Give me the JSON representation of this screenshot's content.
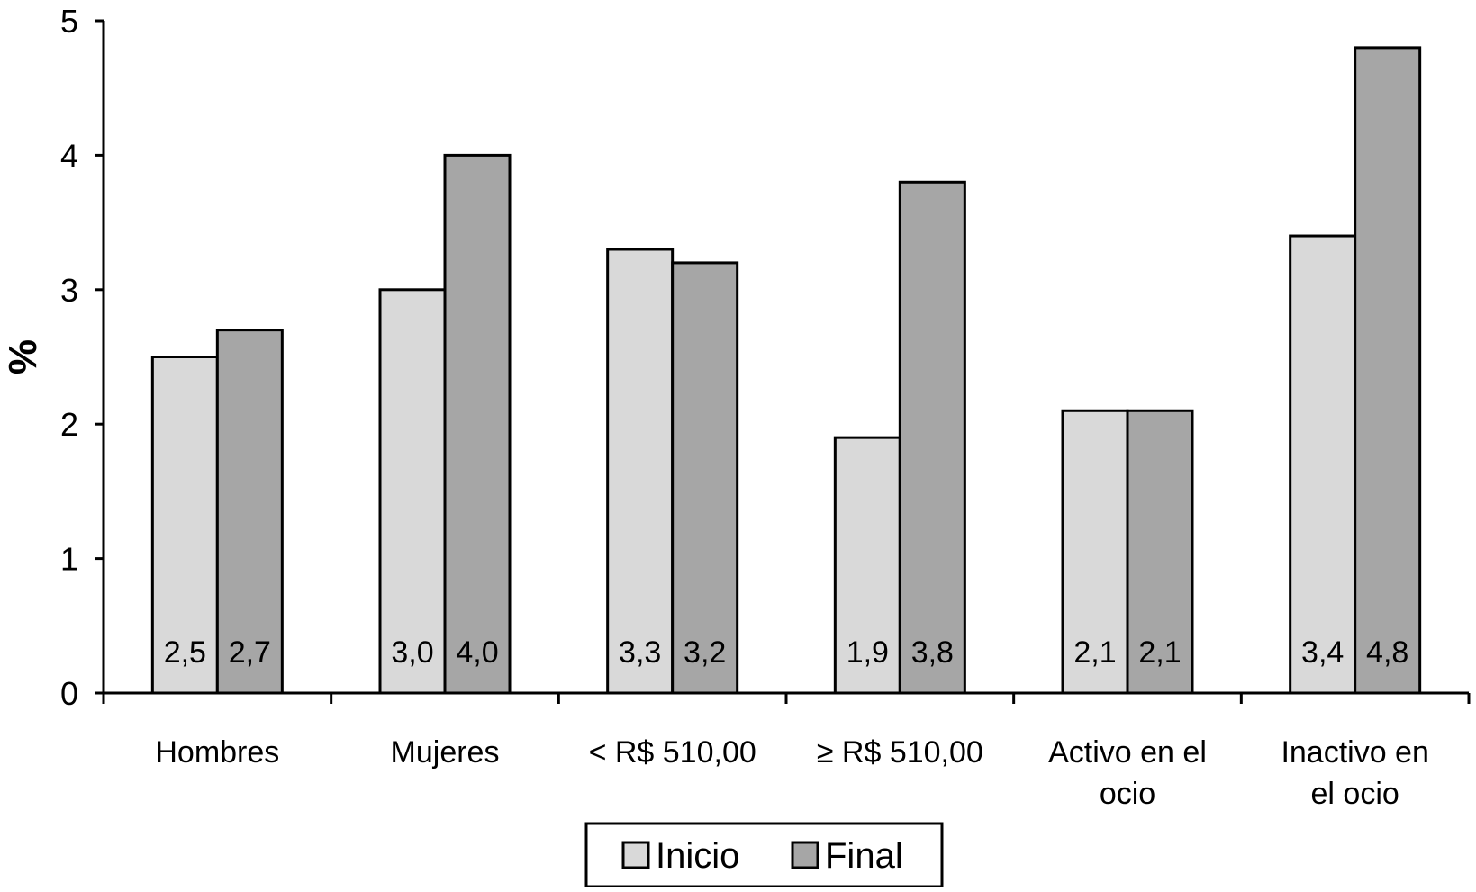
{
  "chart_data": {
    "type": "bar",
    "ylabel": "%",
    "xlabel": "",
    "ylim": [
      0,
      5
    ],
    "yticks": [
      "0",
      "1",
      "2",
      "3",
      "4",
      "5"
    ],
    "categories": [
      [
        "Hombres"
      ],
      [
        "Mujeres"
      ],
      [
        "< R$ 510,00"
      ],
      [
        "≥ R$ 510,00"
      ],
      [
        "Activo en el",
        "ocio"
      ],
      [
        "Inactivo en",
        "el ocio"
      ]
    ],
    "series": [
      {
        "name": "Inicio",
        "color": "#d9d9d9",
        "values": [
          2.5,
          3.0,
          3.3,
          1.9,
          2.1,
          3.4
        ],
        "labels": [
          "2,5",
          "3,0",
          "3,3",
          "1,9",
          "2,1",
          "3,4"
        ]
      },
      {
        "name": "Final",
        "color": "#a6a6a6",
        "values": [
          2.7,
          4.0,
          3.2,
          3.8,
          2.1,
          4.8
        ],
        "labels": [
          "2,7",
          "4,0",
          "3,2",
          "3,8",
          "2,1",
          "4,8"
        ]
      }
    ],
    "legend_position": "bottom-center",
    "grid": false
  }
}
